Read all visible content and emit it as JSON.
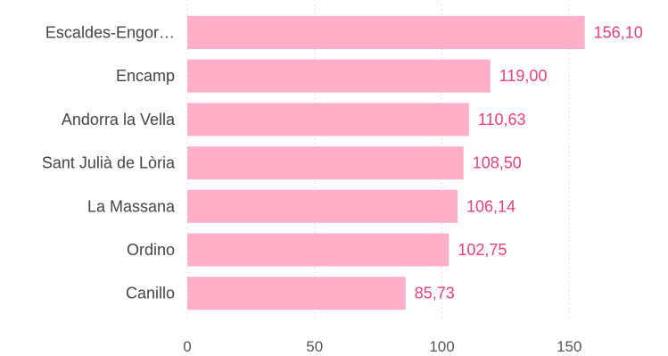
{
  "chart_data": {
    "type": "bar",
    "orientation": "horizontal",
    "categories": [
      "Escaldes-Engor…",
      "Encamp",
      "Andorra la Vella",
      "Sant Julià de Lòria",
      "La Massana",
      "Ordino",
      "Canillo"
    ],
    "values": [
      156.1,
      119.0,
      110.63,
      108.5,
      106.14,
      102.75,
      85.73
    ],
    "value_labels": [
      "156,10",
      "119,00",
      "110,63",
      "108,50",
      "106,14",
      "102,75",
      "85,73"
    ],
    "xlim": [
      0,
      175
    ],
    "xticks": [
      0,
      50,
      100,
      150
    ],
    "xtick_labels": [
      "0",
      "50",
      "100",
      "150"
    ],
    "grid": "x-dotted",
    "legend": "none",
    "colors": {
      "bar": "#ffb0c8",
      "value_label": "#e8427a"
    }
  }
}
